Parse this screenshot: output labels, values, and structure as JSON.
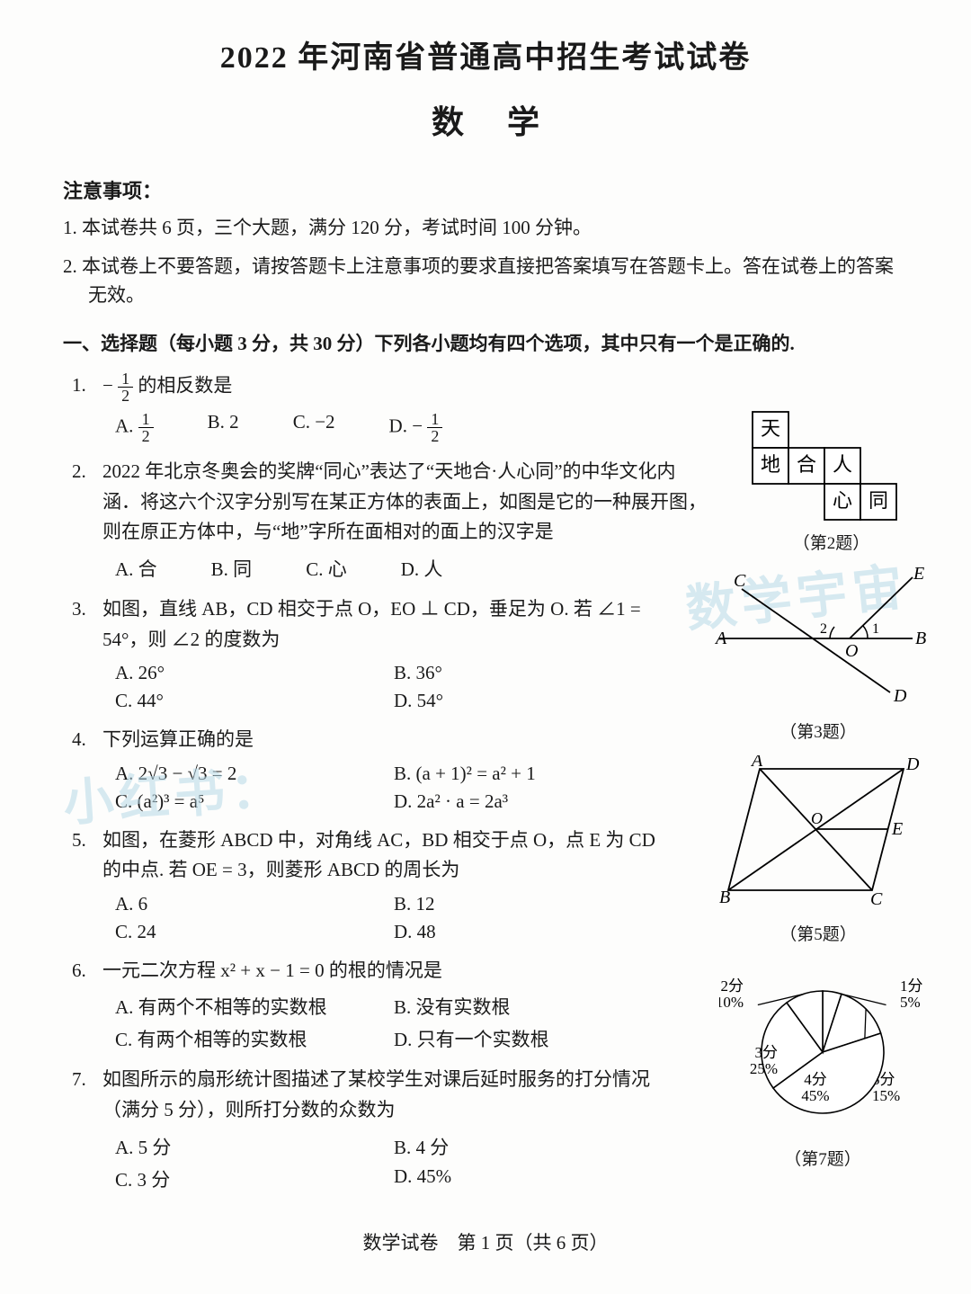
{
  "header": {
    "title": "2022 年河南省普通高中招生考试试卷",
    "subject": "数学"
  },
  "notice": {
    "heading": "注意事项：",
    "items": [
      "1. 本试卷共 6 页，三个大题，满分 120 分，考试时间 100 分钟。",
      "2. 本试卷上不要答题，请按答题卡上注意事项的要求直接把答案填写在答题卡上。答在试卷上的答案无效。"
    ]
  },
  "section1": {
    "heading": "一、选择题（每小题 3 分，共 30 分）下列各小题均有四个选项，其中只有一个是正确的."
  },
  "q1": {
    "num": "1.",
    "stem_prefix": "− ",
    "stem_suffix": " 的相反数是",
    "frac_n": "1",
    "frac_d": "2",
    "A_pre": "A. ",
    "B": "B.  2",
    "C": "C.  −2",
    "D_pre": "D.  − "
  },
  "q2": {
    "num": "2.",
    "stem": "2022 年北京冬奥会的奖牌“同心”表达了“天地合·人心同”的中华文化内涵．将这六个汉字分别写在某正方体的表面上，如图是它的一种展开图，则在原正方体中，与“地”字所在面相对的面上的汉字是",
    "A": "A. 合",
    "B": "B. 同",
    "C": "C. 心",
    "D": "D. 人",
    "figcap": "（第2题）",
    "cells": {
      "tian": "天",
      "di": "地",
      "he": "合",
      "ren": "人",
      "xin": "心",
      "tong": "同"
    }
  },
  "q3": {
    "num": "3.",
    "stem": "如图，直线 AB，CD 相交于点 O，EO ⊥ CD，垂足为 O. 若 ∠1 = 54°，则 ∠2 的度数为",
    "A": "A.  26°",
    "B": "B.  36°",
    "C": "C.  44°",
    "D": "D.  54°",
    "figcap": "（第3题）",
    "labels": {
      "A": "A",
      "B": "B",
      "C": "C",
      "D": "D",
      "E": "E",
      "O": "O",
      "one": "1",
      "two": "2"
    }
  },
  "q4": {
    "num": "4.",
    "stem": "下列运算正确的是",
    "A": "A.  2√3 − √3 = 2",
    "B": "B.  (a + 1)² = a² + 1",
    "C": "C.  (a²)³ = a⁵",
    "D": "D.  2a² · a = 2a³"
  },
  "q5": {
    "num": "5.",
    "stem": "如图，在菱形 ABCD 中，对角线 AC，BD 相交于点 O，点 E 为 CD 的中点. 若 OE = 3，则菱形 ABCD 的周长为",
    "A": "A.  6",
    "B": "B.  12",
    "C": "C.  24",
    "D": "D.  48",
    "figcap": "（第5题）",
    "labels": {
      "A": "A",
      "B": "B",
      "C": "C",
      "D": "D",
      "E": "E",
      "O": "O"
    }
  },
  "q6": {
    "num": "6.",
    "stem": "一元二次方程 x² + x − 1 = 0 的根的情况是",
    "A": "A. 有两个不相等的实数根",
    "B": "B. 没有实数根",
    "C": "C. 有两个相等的实数根",
    "D": "D. 只有一个实数根"
  },
  "q7": {
    "num": "7.",
    "stem": "如图所示的扇形统计图描述了某校学生对课后延时服务的打分情况（满分 5 分），则所打分数的众数为",
    "A": "A.  5 分",
    "B": "B.  4 分",
    "C": "C.  3 分",
    "D": "D.  45%",
    "figcap": "（第7题）",
    "pie": {
      "slices": [
        {
          "label": "1分",
          "pct": "5%",
          "value": 5,
          "color": "#ffffff"
        },
        {
          "label": "5分",
          "pct": "15%",
          "value": 15,
          "color": "#ffffff"
        },
        {
          "label": "4分",
          "pct": "45%",
          "value": 45,
          "color": "#ffffff"
        },
        {
          "label": "3分",
          "pct": "25%",
          "value": 25,
          "color": "#ffffff"
        },
        {
          "label": "2分",
          "pct": "10%",
          "value": 10,
          "color": "#ffffff"
        }
      ],
      "stroke": "#000000"
    }
  },
  "watermarks": {
    "w1": "数学宇宙",
    "w2": "小红书："
  },
  "footer": "数学试卷　第 1 页（共 6 页）"
}
